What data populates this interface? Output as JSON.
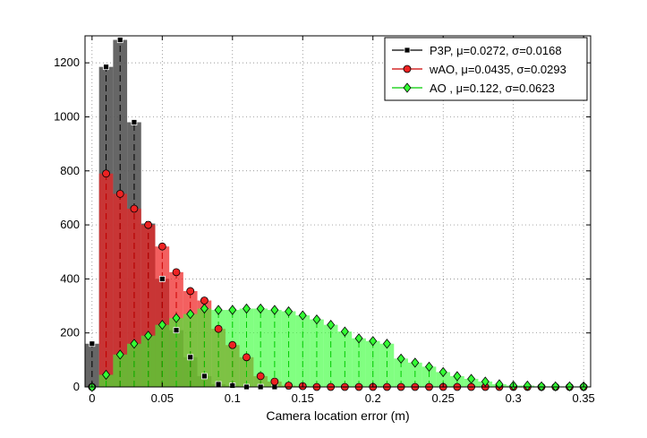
{
  "chart_data": {
    "type": "bar",
    "title": "",
    "xlabel": "Camera location error (m)",
    "ylabel": "",
    "xlim": [
      -0.005,
      0.355
    ],
    "ylim": [
      0,
      1300
    ],
    "grid": true,
    "legend_position": "top-right",
    "x_ticks": [
      0,
      0.05,
      0.1,
      0.15,
      0.2,
      0.25,
      0.3,
      0.35
    ],
    "x_tick_labels": [
      "0",
      "0.05",
      "0.1",
      "0.15",
      "0.2",
      "0.25",
      "0.3",
      "0.35"
    ],
    "y_ticks": [
      0,
      200,
      400,
      600,
      800,
      1000,
      1200
    ],
    "y_tick_labels": [
      "0",
      "200",
      "400",
      "600",
      "800",
      "1000",
      "1200"
    ],
    "bin_width": 0.01,
    "x": [
      0,
      0.01,
      0.02,
      0.03,
      0.04,
      0.05,
      0.06,
      0.07,
      0.08,
      0.09,
      0.1,
      0.11,
      0.12,
      0.13,
      0.14,
      0.15,
      0.16,
      0.17,
      0.18,
      0.19,
      0.2,
      0.21,
      0.22,
      0.23,
      0.24,
      0.25,
      0.26,
      0.27,
      0.28,
      0.29,
      0.3,
      0.31,
      0.32,
      0.33,
      0.34,
      0.35
    ],
    "series": [
      {
        "name": "P3P, μ=0.0272, σ=0.0168",
        "color": "#000000",
        "fill": "#555555",
        "marker": "square",
        "values": [
          160,
          1185,
          1285,
          980,
          605,
          400,
          210,
          110,
          40,
          10,
          5,
          0,
          0,
          0,
          0,
          0,
          0,
          0,
          0,
          0,
          0,
          0,
          0,
          0,
          0,
          0,
          0,
          0,
          0,
          0,
          0,
          0,
          0,
          0,
          0,
          0
        ]
      },
      {
        "name": "wAO, μ=0.0435, σ=0.0293",
        "color": "#cc0000",
        "fill": "#ee2222",
        "marker": "circle",
        "values": [
          0,
          790,
          715,
          660,
          600,
          520,
          425,
          355,
          320,
          215,
          155,
          110,
          40,
          20,
          5,
          3,
          0,
          0,
          0,
          0,
          0,
          0,
          0,
          0,
          0,
          0,
          0,
          0,
          0,
          0,
          0,
          0,
          0,
          0,
          0,
          0
        ]
      },
      {
        "name": "AO , μ=0.122, σ=0.0623",
        "color": "#00cc00",
        "fill": "#33ff33",
        "marker": "diamond",
        "values": [
          0,
          45,
          120,
          160,
          190,
          230,
          255,
          270,
          290,
          285,
          285,
          290,
          290,
          285,
          280,
          265,
          250,
          230,
          205,
          180,
          170,
          160,
          105,
          90,
          75,
          55,
          40,
          30,
          20,
          10,
          5,
          5,
          2,
          2,
          2,
          2
        ]
      }
    ]
  }
}
